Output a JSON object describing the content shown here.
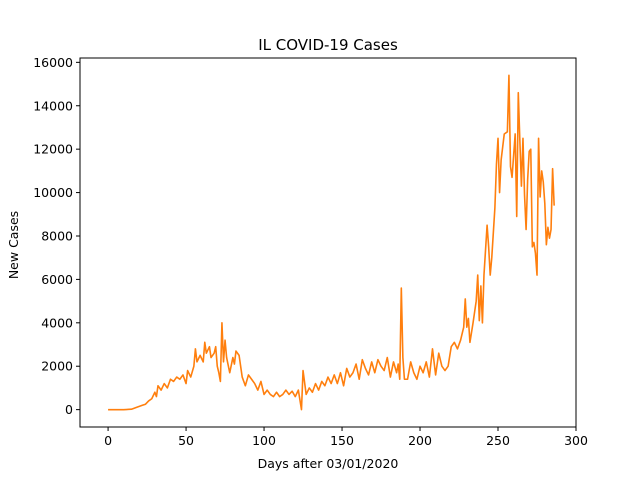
{
  "chart_data": {
    "type": "line",
    "title": "IL COVID-19 Cases",
    "xlabel": "Days after 03/01/2020",
    "ylabel": "New Cases",
    "xlim": [
      -18,
      300
    ],
    "ylim": [
      -800,
      16200
    ],
    "xticks": [
      0,
      50,
      100,
      150,
      200,
      250,
      300
    ],
    "yticks": [
      0,
      2000,
      4000,
      6000,
      8000,
      10000,
      12000,
      14000,
      16000
    ],
    "grid": false,
    "legend": "none",
    "series": [
      {
        "color": "#ff7f0e",
        "points": [
          [
            0,
            0
          ],
          [
            5,
            0
          ],
          [
            10,
            0
          ],
          [
            15,
            20
          ],
          [
            18,
            100
          ],
          [
            20,
            150
          ],
          [
            22,
            200
          ],
          [
            24,
            250
          ],
          [
            26,
            400
          ],
          [
            28,
            500
          ],
          [
            30,
            800
          ],
          [
            31,
            600
          ],
          [
            32,
            1100
          ],
          [
            34,
            900
          ],
          [
            36,
            1200
          ],
          [
            38,
            1000
          ],
          [
            40,
            1400
          ],
          [
            42,
            1300
          ],
          [
            44,
            1500
          ],
          [
            46,
            1400
          ],
          [
            48,
            1600
          ],
          [
            50,
            1200
          ],
          [
            51,
            1800
          ],
          [
            53,
            1500
          ],
          [
            55,
            2000
          ],
          [
            56,
            2800
          ],
          [
            57,
            2200
          ],
          [
            59,
            2500
          ],
          [
            61,
            2200
          ],
          [
            62,
            3100
          ],
          [
            63,
            2600
          ],
          [
            65,
            2900
          ],
          [
            66,
            2400
          ],
          [
            68,
            2600
          ],
          [
            69,
            2900
          ],
          [
            70,
            2000
          ],
          [
            71,
            1700
          ],
          [
            72,
            1300
          ],
          [
            73,
            4000
          ],
          [
            74,
            2200
          ],
          [
            75,
            3200
          ],
          [
            76,
            2400
          ],
          [
            78,
            1700
          ],
          [
            80,
            2400
          ],
          [
            81,
            2100
          ],
          [
            82,
            2700
          ],
          [
            84,
            2500
          ],
          [
            86,
            1500
          ],
          [
            88,
            1100
          ],
          [
            90,
            1600
          ],
          [
            92,
            1400
          ],
          [
            94,
            1200
          ],
          [
            96,
            900
          ],
          [
            98,
            1300
          ],
          [
            100,
            700
          ],
          [
            102,
            900
          ],
          [
            104,
            700
          ],
          [
            106,
            600
          ],
          [
            108,
            800
          ],
          [
            110,
            600
          ],
          [
            112,
            700
          ],
          [
            114,
            900
          ],
          [
            116,
            700
          ],
          [
            118,
            850
          ],
          [
            120,
            600
          ],
          [
            122,
            900
          ],
          [
            124,
            0
          ],
          [
            125,
            1800
          ],
          [
            127,
            700
          ],
          [
            129,
            1000
          ],
          [
            131,
            800
          ],
          [
            133,
            1200
          ],
          [
            135,
            900
          ],
          [
            137,
            1300
          ],
          [
            139,
            1100
          ],
          [
            141,
            1500
          ],
          [
            143,
            1200
          ],
          [
            145,
            1600
          ],
          [
            147,
            1200
          ],
          [
            149,
            1700
          ],
          [
            151,
            1100
          ],
          [
            153,
            1900
          ],
          [
            155,
            1500
          ],
          [
            157,
            1700
          ],
          [
            159,
            2100
          ],
          [
            161,
            1400
          ],
          [
            163,
            2300
          ],
          [
            165,
            1900
          ],
          [
            167,
            1600
          ],
          [
            169,
            2200
          ],
          [
            171,
            1700
          ],
          [
            173,
            2300
          ],
          [
            175,
            2000
          ],
          [
            177,
            1800
          ],
          [
            179,
            2400
          ],
          [
            181,
            1500
          ],
          [
            183,
            2200
          ],
          [
            185,
            1700
          ],
          [
            186,
            2100
          ],
          [
            187,
            1400
          ],
          [
            188,
            5600
          ],
          [
            189,
            2400
          ],
          [
            190,
            1400
          ],
          [
            192,
            1400
          ],
          [
            194,
            2200
          ],
          [
            196,
            1700
          ],
          [
            198,
            1400
          ],
          [
            200,
            2000
          ],
          [
            202,
            1700
          ],
          [
            204,
            2200
          ],
          [
            206,
            1500
          ],
          [
            208,
            2800
          ],
          [
            210,
            1600
          ],
          [
            212,
            2600
          ],
          [
            214,
            2000
          ],
          [
            216,
            1800
          ],
          [
            218,
            2000
          ],
          [
            220,
            2900
          ],
          [
            222,
            3100
          ],
          [
            224,
            2800
          ],
          [
            226,
            3200
          ],
          [
            228,
            3800
          ],
          [
            229,
            5100
          ],
          [
            230,
            3800
          ],
          [
            231,
            4200
          ],
          [
            232,
            3100
          ],
          [
            234,
            4000
          ],
          [
            236,
            5000
          ],
          [
            237,
            6200
          ],
          [
            238,
            4100
          ],
          [
            239,
            5700
          ],
          [
            240,
            4000
          ],
          [
            241,
            6200
          ],
          [
            243,
            8500
          ],
          [
            244,
            7500
          ],
          [
            245,
            6200
          ],
          [
            246,
            7000
          ],
          [
            248,
            9300
          ],
          [
            249,
            11300
          ],
          [
            250,
            12500
          ],
          [
            251,
            10000
          ],
          [
            252,
            11500
          ],
          [
            254,
            12700
          ],
          [
            256,
            12800
          ],
          [
            257,
            15400
          ],
          [
            258,
            11200
          ],
          [
            259,
            10700
          ],
          [
            261,
            12700
          ],
          [
            262,
            8900
          ],
          [
            263,
            14600
          ],
          [
            264,
            12400
          ],
          [
            265,
            10300
          ],
          [
            266,
            12500
          ],
          [
            267,
            9900
          ],
          [
            268,
            8300
          ],
          [
            269,
            10600
          ],
          [
            270,
            11900
          ],
          [
            271,
            12000
          ],
          [
            272,
            7500
          ],
          [
            273,
            7700
          ],
          [
            274,
            7200
          ],
          [
            275,
            6200
          ],
          [
            276,
            12500
          ],
          [
            277,
            9800
          ],
          [
            278,
            11000
          ],
          [
            279,
            10500
          ],
          [
            280,
            9500
          ],
          [
            281,
            7600
          ],
          [
            282,
            8400
          ],
          [
            283,
            7900
          ],
          [
            284,
            8300
          ],
          [
            285,
            11100
          ],
          [
            286,
            9400
          ]
        ]
      }
    ]
  }
}
